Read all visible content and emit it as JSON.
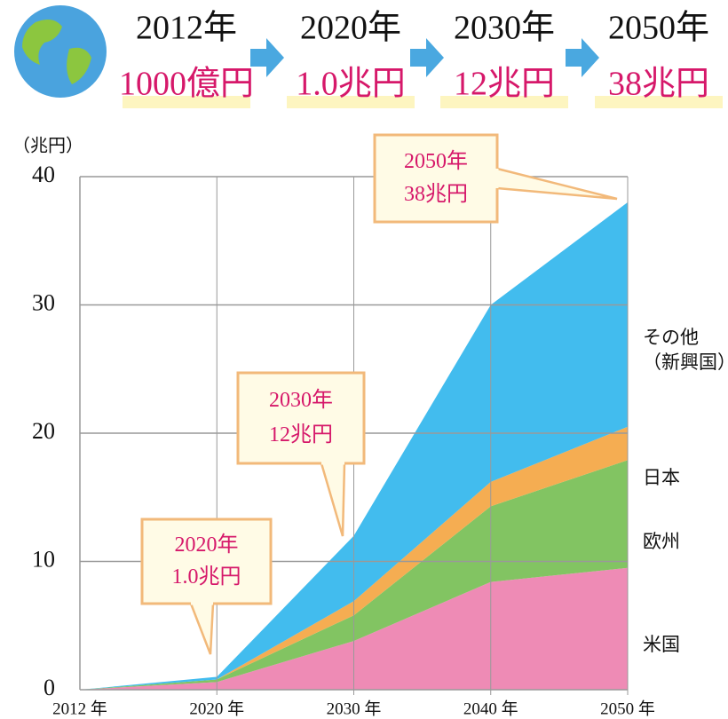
{
  "header": [
    {
      "year": "2012年",
      "value": "1000億円"
    },
    {
      "year": "2020年",
      "value": "1.0兆円"
    },
    {
      "year": "2030年",
      "value": "12兆円"
    },
    {
      "year": "2050年",
      "value": "38兆円"
    }
  ],
  "chart_data": {
    "type": "stacked_area",
    "y_label": "（兆円）",
    "categories": [
      "2012 年",
      "2020 年",
      "2030 年",
      "2040 年",
      "2050 年"
    ],
    "series": [
      {
        "name": "米国",
        "color": "#ee8bb5",
        "values": [
          0,
          0.6,
          3.8,
          8.4,
          9.5
        ]
      },
      {
        "name": "欧州",
        "color": "#82c462",
        "values": [
          0,
          0.2,
          2.0,
          5.9,
          8.4
        ]
      },
      {
        "name": "日本",
        "color": "#f5ad52",
        "values": [
          0,
          0,
          1.1,
          1.9,
          2.6
        ]
      },
      {
        "name": "その他\n（新興国）",
        "color": "#42bcee",
        "values": [
          0,
          0.2,
          5.1,
          13.8,
          17.5
        ]
      }
    ],
    "ylim": [
      0,
      40
    ],
    "yticks": [
      0,
      10,
      20,
      30,
      40
    ],
    "grid": true,
    "annotations": [
      {
        "year": "2020年",
        "value": "1.0兆円"
      },
      {
        "year": "2030年",
        "value": "12兆円"
      },
      {
        "year": "2050年",
        "value": "38兆円"
      }
    ]
  }
}
